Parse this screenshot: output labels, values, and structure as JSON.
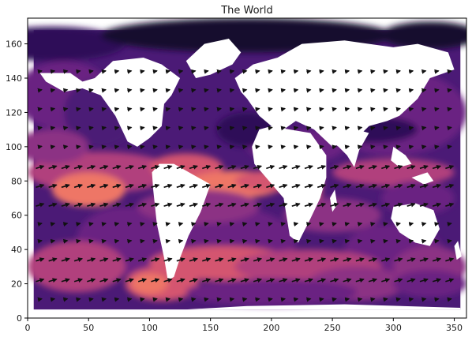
{
  "chart_data": {
    "type": "heatmap",
    "title": "The World",
    "xlabel": "",
    "ylabel": "",
    "xlim": [
      0,
      360
    ],
    "ylim": [
      0,
      175
    ],
    "x_ticks": [
      0,
      50,
      100,
      150,
      200,
      250,
      300,
      350
    ],
    "y_ticks": [
      0,
      20,
      40,
      60,
      80,
      100,
      120,
      140,
      160
    ],
    "data_extent": {
      "x": [
        5,
        355
      ],
      "y": [
        5,
        168
      ]
    },
    "grid": false,
    "colormap": "magma",
    "colors": {
      "levels": [
        "#120b2e",
        "#2d1159",
        "#4b1a76",
        "#6a2482",
        "#8c3084",
        "#b13f7d",
        "#d4556f",
        "#ee7666",
        "#f99c6a"
      ],
      "land": "#ffffff"
    },
    "overlay": {
      "type": "quiver",
      "description_of_rows": "arrows along latitude bands",
      "arrow_rows_y": [
        11,
        22,
        34,
        45,
        55,
        66,
        77,
        88,
        100,
        111,
        122,
        133,
        144
      ]
    }
  }
}
